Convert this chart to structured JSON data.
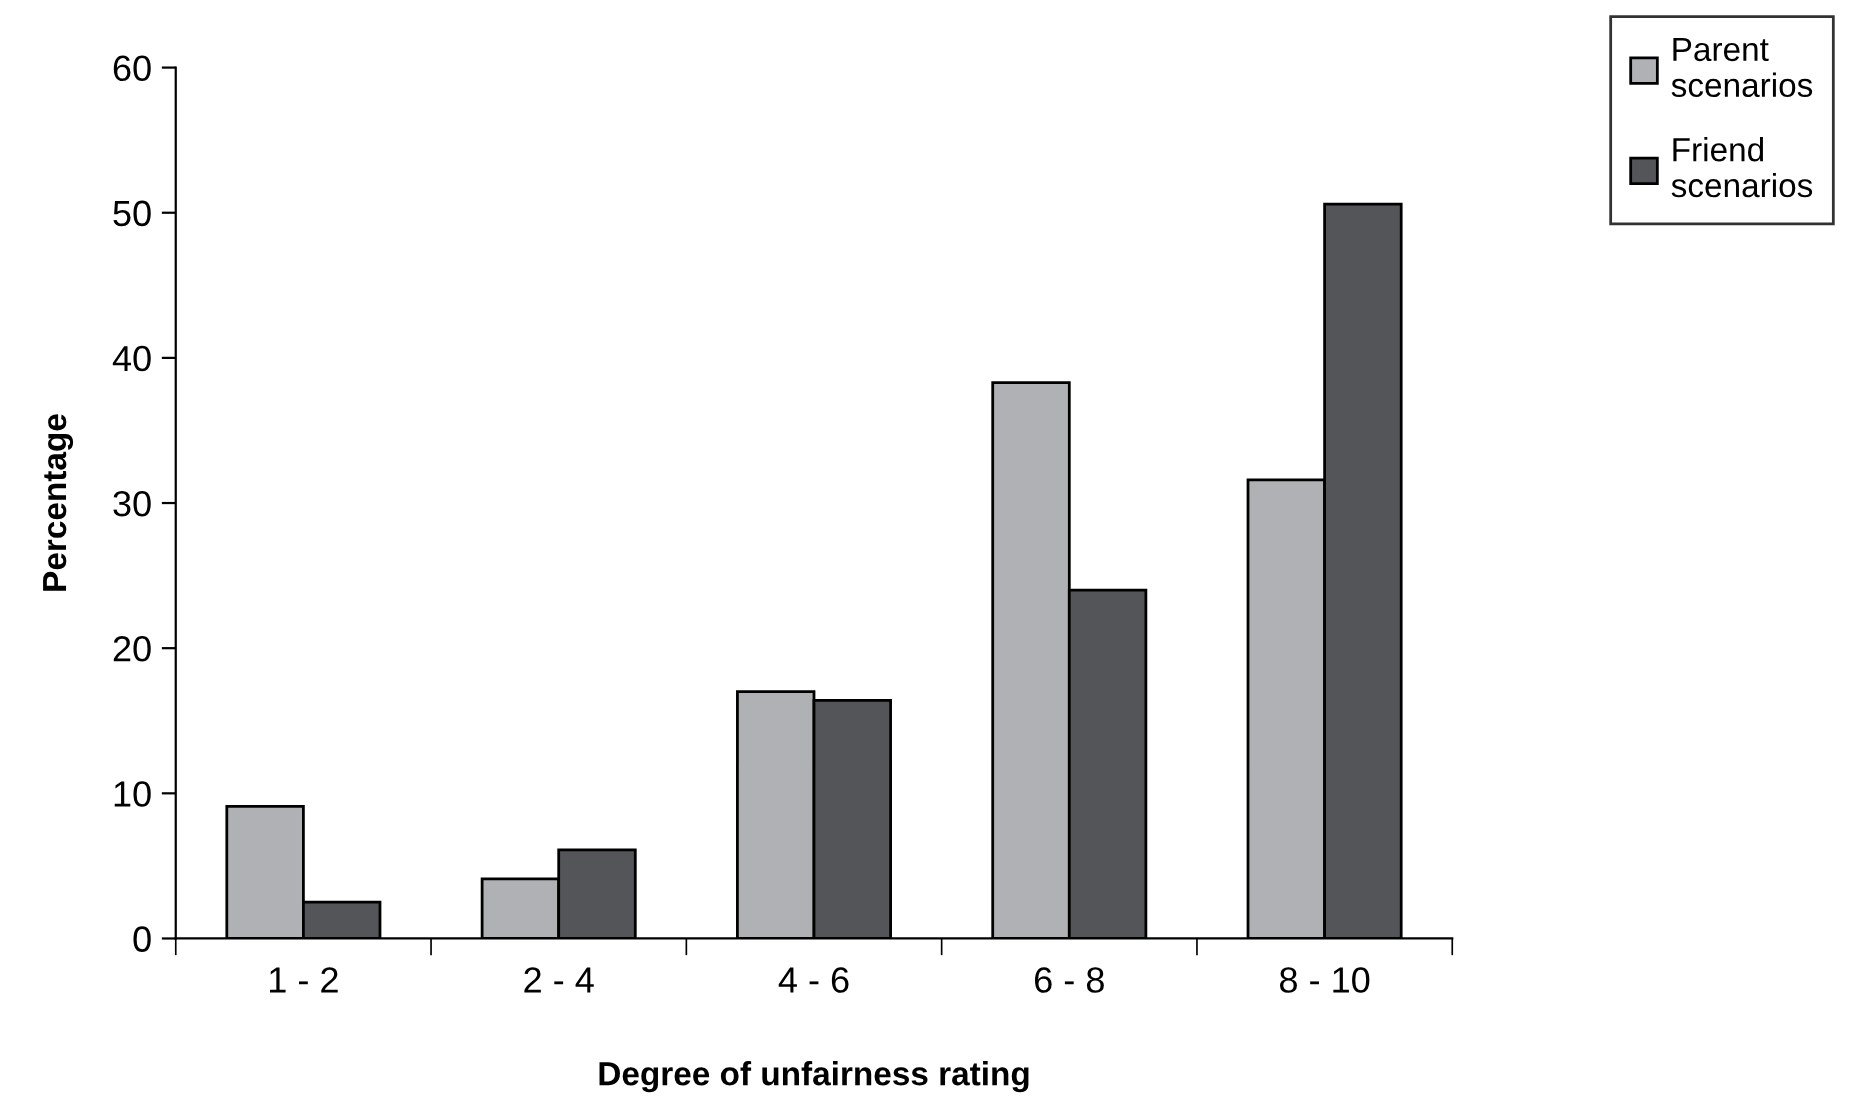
{
  "chart_data": {
    "type": "bar",
    "xlabel": "Degree of unfairness rating",
    "ylabel": "Percentage",
    "categories": [
      "1 - 2",
      "2 - 4",
      "4 - 6",
      "6 - 8",
      "8 - 10"
    ],
    "series": [
      {
        "name": "Parent scenarios",
        "color": "#b0b1b5",
        "values": [
          9.1,
          4.1,
          17.0,
          38.3,
          31.6
        ]
      },
      {
        "name": "Friend scenarios",
        "color": "#545558",
        "values": [
          2.5,
          6.1,
          16.4,
          24.0,
          50.6
        ]
      }
    ],
    "ylim": [
      0,
      60
    ],
    "yticks": [
      0,
      10,
      20,
      30,
      40,
      50,
      60
    ],
    "grid": false,
    "legend": "top right"
  }
}
